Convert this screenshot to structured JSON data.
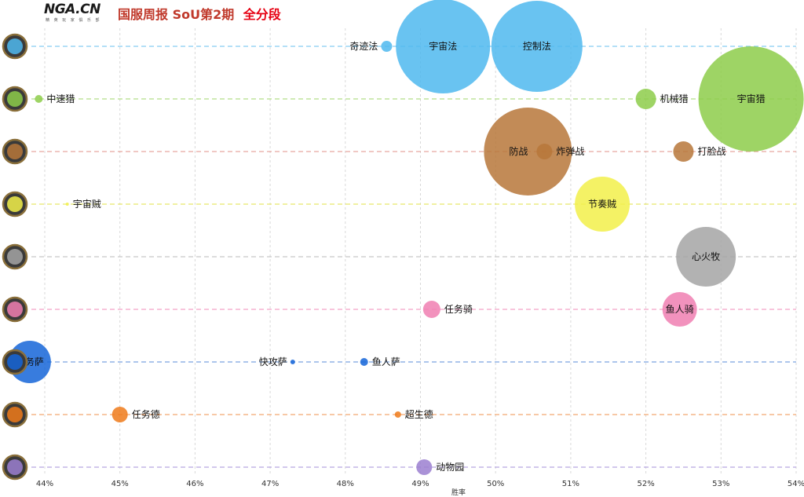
{
  "header": {
    "logo_text": "NGA.CN",
    "logo_tagline": "精 英 玩 家 俱 乐 部",
    "title": "国服周报 SoU第2期",
    "subtitle": "全分段"
  },
  "chart_data": {
    "type": "scatter",
    "subtype": "bubble",
    "xlabel": "胜率",
    "ylabel": "",
    "xlim": [
      44,
      54
    ],
    "xticks": [
      "44%",
      "45%",
      "46%",
      "47%",
      "48%",
      "49%",
      "50%",
      "51%",
      "52%",
      "53%",
      "54%"
    ],
    "grid": true,
    "rows": [
      {
        "class": "法师",
        "icon": "mage-class-icon",
        "color": "#4fb9ee",
        "dash": "#86cdf2"
      },
      {
        "class": "猎人",
        "icon": "hunter-class-icon",
        "color": "#8dcc4a",
        "dash": "#b2dd87"
      },
      {
        "class": "战士",
        "icon": "warrior-class-icon",
        "color": "#b7773a",
        "dash": "#e8a8a0"
      },
      {
        "class": "潜行者",
        "icon": "rogue-class-icon",
        "color": "#f2f04a",
        "dash": "#e8e86a"
      },
      {
        "class": "牧师",
        "icon": "priest-class-icon",
        "color": "#a5a5a5",
        "dash": "#c8c8c8"
      },
      {
        "class": "圣骑士",
        "icon": "paladin-class-icon",
        "color": "#f07fb2",
        "dash": "#f4a2c8"
      },
      {
        "class": "萨满祭司",
        "icon": "shaman-class-icon",
        "color": "#1565d8",
        "dash": "#7aa2e0"
      },
      {
        "class": "德鲁伊",
        "icon": "druid-class-icon",
        "color": "#ef7a1a",
        "dash": "#f2a870"
      },
      {
        "class": "术士",
        "icon": "warlock-class-icon",
        "color": "#9b7fd0",
        "dash": "#b8a8e0"
      }
    ],
    "points": [
      {
        "name": "奇迹法",
        "row": 0,
        "x": 48.55,
        "size": 7,
        "label": "left"
      },
      {
        "name": "宇宙法",
        "row": 0,
        "x": 49.3,
        "size": 60,
        "label": "inside"
      },
      {
        "name": "控制法",
        "row": 0,
        "x": 50.55,
        "size": 58,
        "label": "inside"
      },
      {
        "name": "中速猎",
        "row": 1,
        "x": 43.92,
        "size": 5,
        "label": "right"
      },
      {
        "name": "机械猎",
        "row": 1,
        "x": 52.0,
        "size": 13,
        "label": "right"
      },
      {
        "name": "宇宙猎",
        "row": 1,
        "x": 53.4,
        "size": 67,
        "label": "inside"
      },
      {
        "name": "防战",
        "row": 2,
        "x": 50.43,
        "size": 56,
        "label": "inside-left"
      },
      {
        "name": "炸弹战",
        "row": 2,
        "x": 50.65,
        "size": 10,
        "label": "right"
      },
      {
        "name": "打脸战",
        "row": 2,
        "x": 52.5,
        "size": 13,
        "label": "right"
      },
      {
        "name": "宇宙贼",
        "row": 3,
        "x": 44.3,
        "size": 2,
        "label": "right"
      },
      {
        "name": "节奏贼",
        "row": 3,
        "x": 51.42,
        "size": 35,
        "label": "inside"
      },
      {
        "name": "心火牧",
        "row": 4,
        "x": 52.8,
        "size": 38,
        "label": "inside"
      },
      {
        "name": "任务骑",
        "row": 5,
        "x": 49.15,
        "size": 11,
        "label": "right"
      },
      {
        "name": "鱼人骑",
        "row": 5,
        "x": 52.45,
        "size": 22,
        "label": "inside"
      },
      {
        "name": "任务萨",
        "row": 6,
        "x": 43.8,
        "size": 27,
        "label": "inside"
      },
      {
        "name": "快攻萨",
        "row": 6,
        "x": 47.3,
        "size": 3,
        "label": "left"
      },
      {
        "name": "鱼人萨",
        "row": 6,
        "x": 48.25,
        "size": 5,
        "label": "right"
      },
      {
        "name": "任务德",
        "row": 7,
        "x": 45.0,
        "size": 10,
        "label": "right"
      },
      {
        "name": "超生德",
        "row": 7,
        "x": 48.7,
        "size": 4,
        "label": "right"
      },
      {
        "name": "动物园",
        "row": 8,
        "x": 49.05,
        "size": 10,
        "label": "right"
      }
    ]
  }
}
